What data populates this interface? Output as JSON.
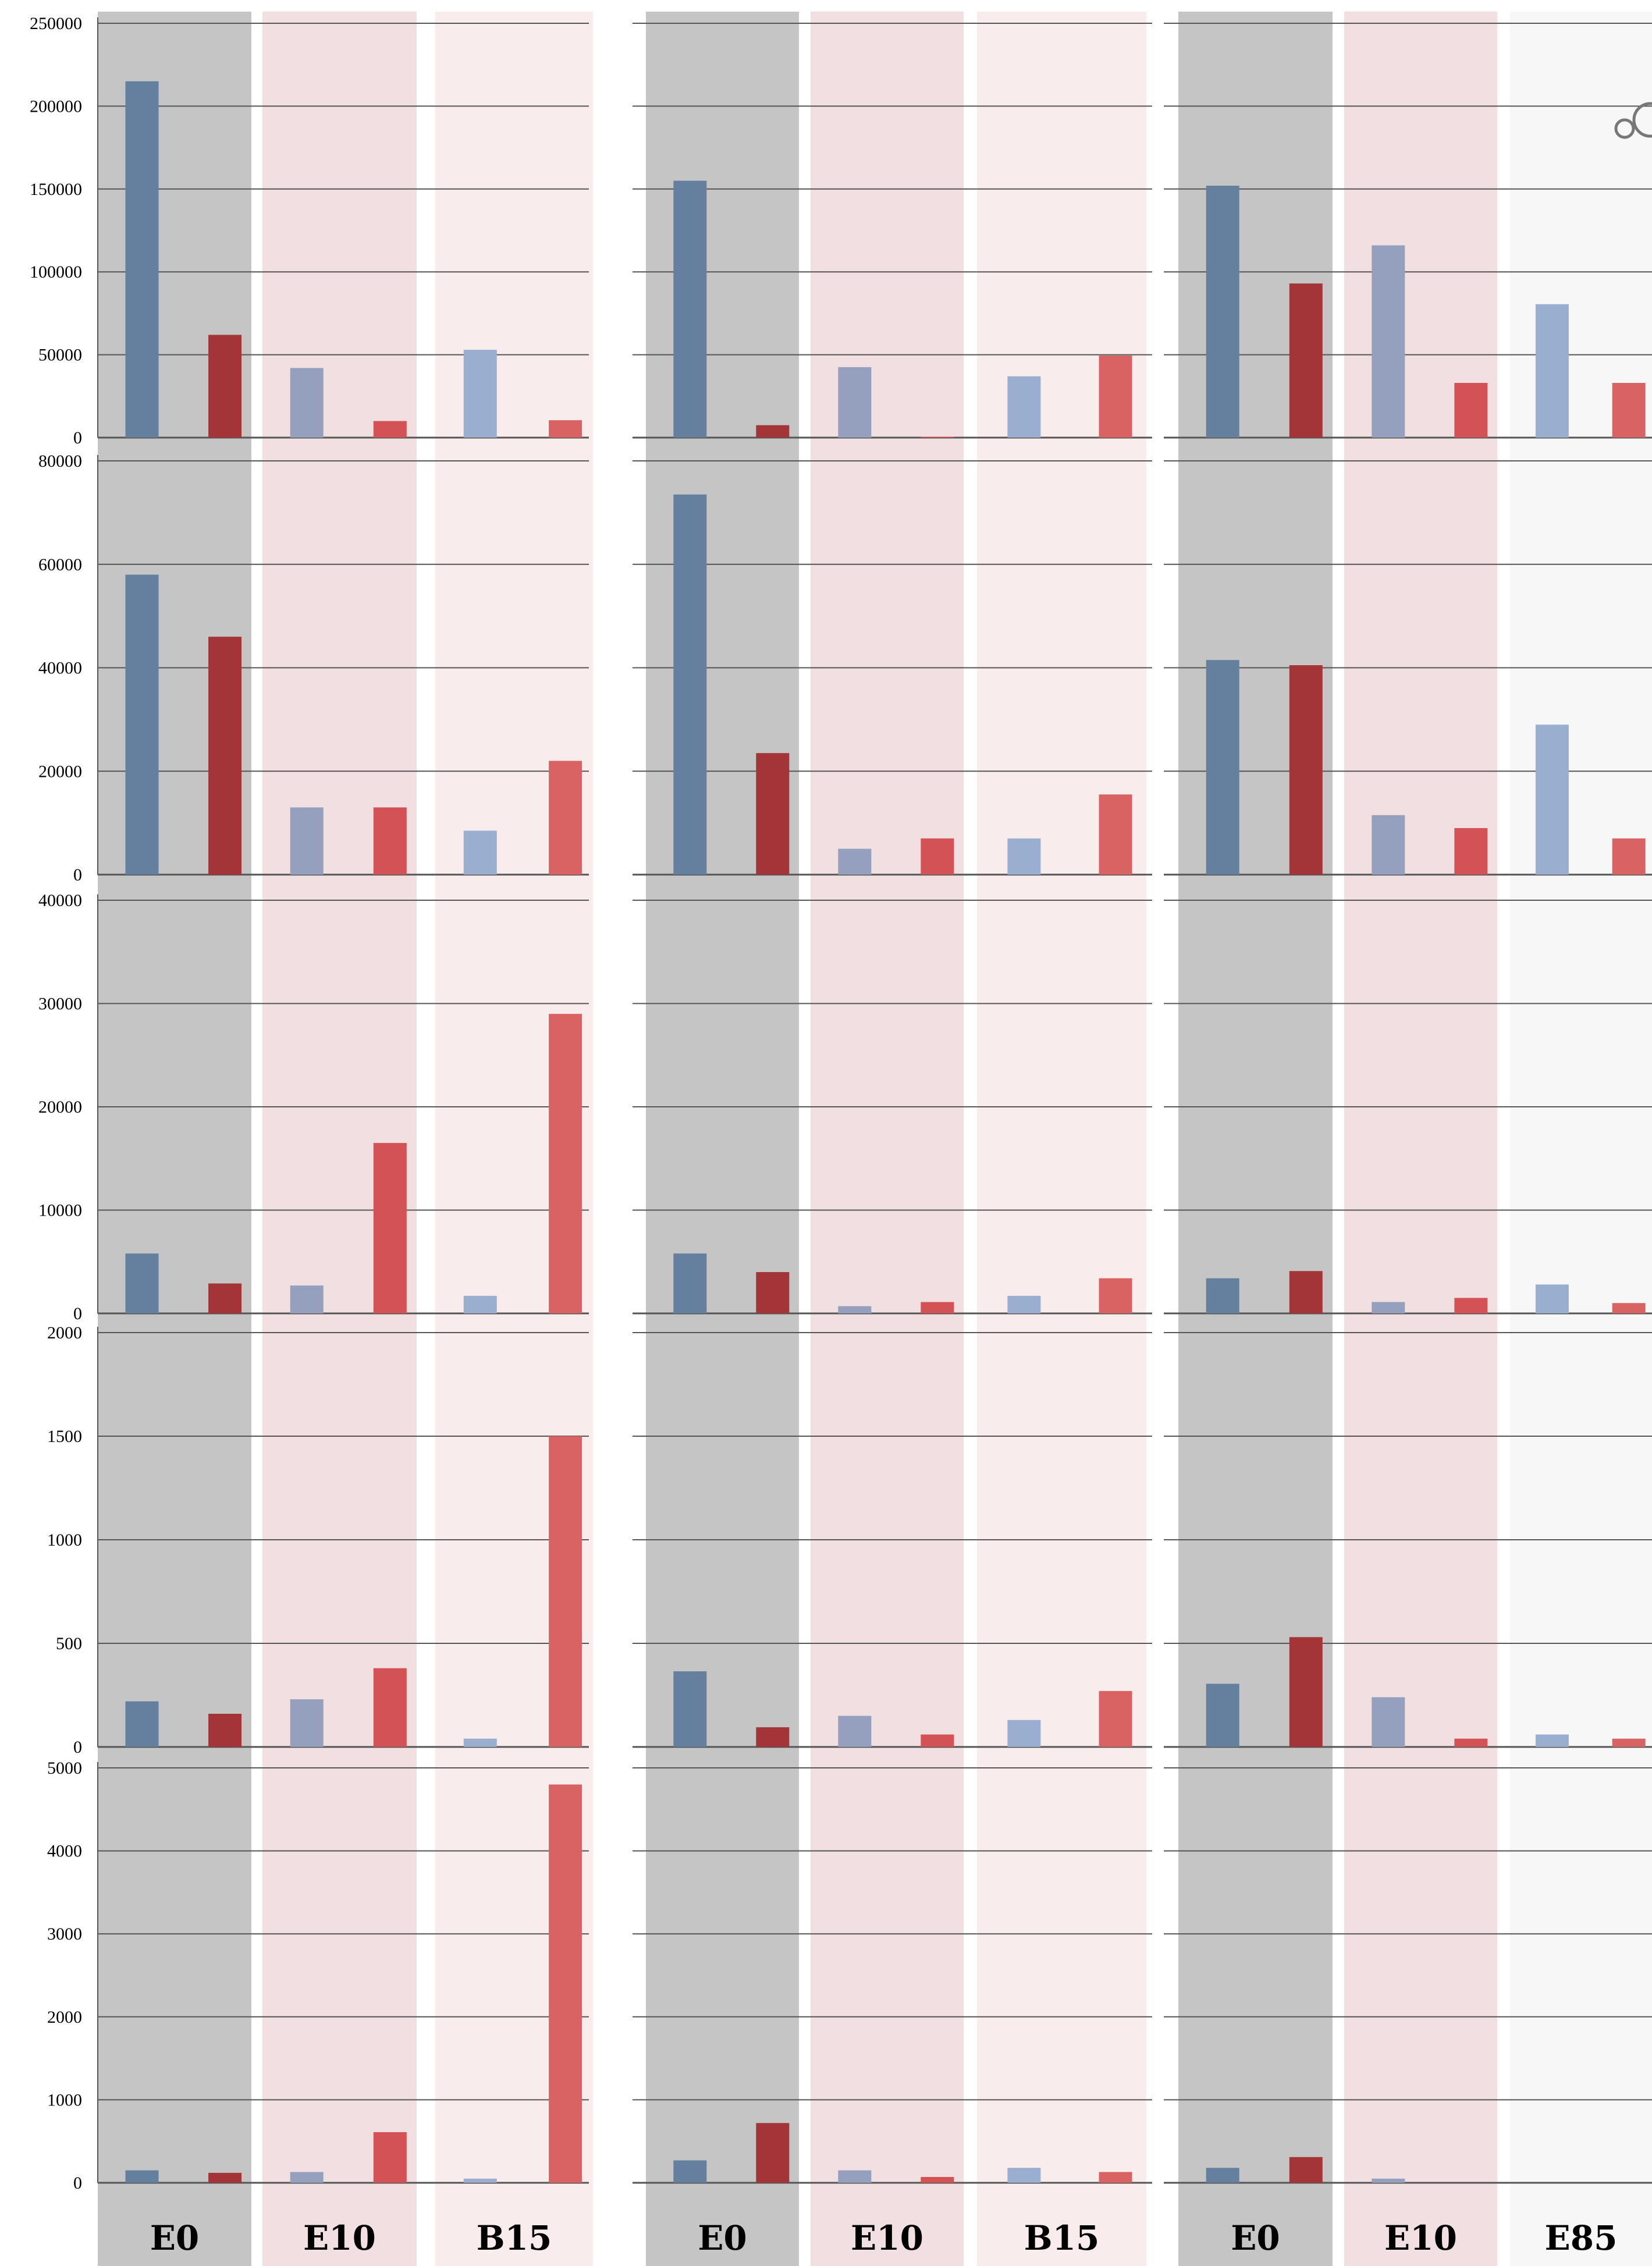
{
  "figure": {
    "colors": {
      "group_bg": [
        "#c5c5c5",
        "#f1dfe1",
        "#f8eced",
        "#f7f7f7"
      ],
      "bar_first": [
        "#65809f",
        "#94a0bd",
        "#9aaed0"
      ],
      "bar_second": [
        "#a33539",
        "#d25255",
        "#d96263"
      ],
      "grid": "#555555",
      "axis": "#555555"
    }
  },
  "chart_data": [
    {
      "type": "bar",
      "row": 0,
      "col": 0,
      "ylim": [
        0,
        250000
      ],
      "yticks": [
        "0",
        "50000",
        "100000",
        "150000",
        "200000",
        "250000"
      ],
      "categories": [
        "E0",
        "E10",
        "B15"
      ],
      "values": [
        [
          215000,
          62000
        ],
        [
          42000,
          10000
        ],
        [
          53000,
          10500
        ]
      ]
    },
    {
      "type": "bar",
      "row": 0,
      "col": 1,
      "ylim": [
        0,
        250000
      ],
      "categories": [
        "E0",
        "E10",
        "B15"
      ],
      "values": [
        [
          155000,
          7500
        ],
        [
          42500,
          500
        ],
        [
          37000,
          49500
        ]
      ]
    },
    {
      "type": "bar",
      "row": 0,
      "col": 2,
      "ylim": [
        0,
        250000
      ],
      "categories": [
        "E0",
        "E10",
        "E85"
      ],
      "values": [
        [
          152000,
          93000
        ],
        [
          116000,
          33000
        ],
        [
          80500,
          33000
        ]
      ]
    },
    {
      "type": "bar",
      "row": 1,
      "col": 0,
      "ylim": [
        0,
        80000
      ],
      "yticks": [
        "0",
        "20000",
        "40000",
        "60000",
        "80000"
      ],
      "categories": [
        "E0",
        "E10",
        "B15"
      ],
      "values": [
        [
          58000,
          46000
        ],
        [
          13000,
          13000
        ],
        [
          8500,
          22000
        ]
      ]
    },
    {
      "type": "bar",
      "row": 1,
      "col": 1,
      "ylim": [
        0,
        80000
      ],
      "categories": [
        "E0",
        "E10",
        "B15"
      ],
      "values": [
        [
          73500,
          23500
        ],
        [
          5000,
          7000
        ],
        [
          7000,
          15500
        ]
      ]
    },
    {
      "type": "bar",
      "row": 1,
      "col": 2,
      "ylim": [
        0,
        80000
      ],
      "categories": [
        "E0",
        "E10",
        "E85"
      ],
      "values": [
        [
          41500,
          40500
        ],
        [
          11500,
          9000
        ],
        [
          29000,
          7000
        ]
      ]
    },
    {
      "type": "bar",
      "row": 2,
      "col": 0,
      "ylim": [
        0,
        40000
      ],
      "yticks": [
        "0",
        "10000",
        "20000",
        "30000",
        "40000"
      ],
      "categories": [
        "E0",
        "E10",
        "B15"
      ],
      "values": [
        [
          5800,
          2900
        ],
        [
          2700,
          16500
        ],
        [
          1700,
          29000
        ]
      ]
    },
    {
      "type": "bar",
      "row": 2,
      "col": 1,
      "ylim": [
        0,
        40000
      ],
      "categories": [
        "E0",
        "E10",
        "B15"
      ],
      "values": [
        [
          5800,
          4000
        ],
        [
          700,
          1100
        ],
        [
          1700,
          3400
        ]
      ]
    },
    {
      "type": "bar",
      "row": 2,
      "col": 2,
      "ylim": [
        0,
        40000
      ],
      "categories": [
        "E0",
        "E10",
        "E85"
      ],
      "values": [
        [
          3400,
          4100
        ],
        [
          1100,
          1500
        ],
        [
          2800,
          1000
        ]
      ]
    },
    {
      "type": "bar",
      "row": 3,
      "col": 0,
      "ylim": [
        0,
        2000
      ],
      "yticks": [
        "0",
        "500",
        "1000",
        "1500",
        "2000"
      ],
      "categories": [
        "E0",
        "E10",
        "B15"
      ],
      "values": [
        [
          220,
          160
        ],
        [
          230,
          380
        ],
        [
          40,
          1500
        ]
      ]
    },
    {
      "type": "bar",
      "row": 3,
      "col": 1,
      "ylim": [
        0,
        2000
      ],
      "categories": [
        "E0",
        "E10",
        "B15"
      ],
      "values": [
        [
          365,
          95
        ],
        [
          150,
          60
        ],
        [
          130,
          270
        ]
      ]
    },
    {
      "type": "bar",
      "row": 3,
      "col": 2,
      "ylim": [
        0,
        2000
      ],
      "categories": [
        "E0",
        "E10",
        "E85"
      ],
      "values": [
        [
          305,
          530
        ],
        [
          240,
          40
        ],
        [
          60,
          40
        ]
      ]
    },
    {
      "type": "bar",
      "row": 4,
      "col": 0,
      "ylim": [
        0,
        5000
      ],
      "yticks": [
        "0",
        "1000",
        "2000",
        "3000",
        "4000",
        "5000"
      ],
      "categories": [
        "E0",
        "E10",
        "B15"
      ],
      "values": [
        [
          150,
          120
        ],
        [
          130,
          610
        ],
        [
          50,
          4800
        ]
      ]
    },
    {
      "type": "bar",
      "row": 4,
      "col": 1,
      "ylim": [
        0,
        5000
      ],
      "categories": [
        "E0",
        "E10",
        "B15"
      ],
      "values": [
        [
          270,
          720
        ],
        [
          150,
          70
        ],
        [
          180,
          130
        ]
      ]
    },
    {
      "type": "bar",
      "row": 4,
      "col": 2,
      "ylim": [
        0,
        5000
      ],
      "categories": [
        "E0",
        "E10",
        "E85"
      ],
      "values": [
        [
          180,
          310
        ],
        [
          50,
          0
        ],
        [
          0,
          0
        ]
      ]
    }
  ]
}
